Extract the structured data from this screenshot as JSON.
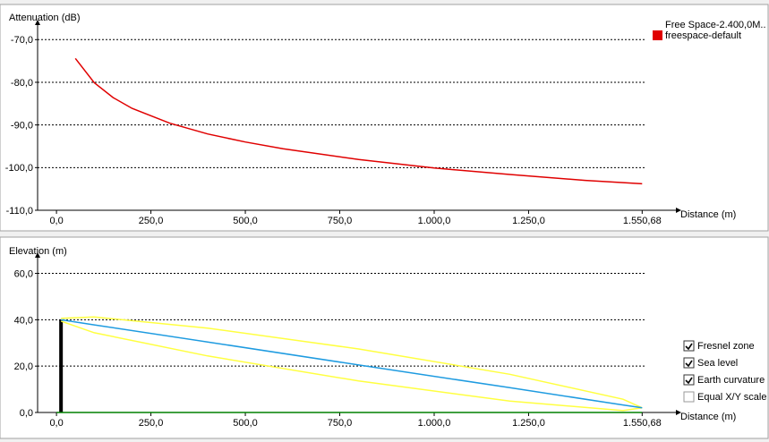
{
  "chart_data": [
    {
      "type": "line",
      "y_label": "Attenuation (dB)",
      "x_label": "Distance (m)",
      "legend_title": "Free Space-2.400,0M..",
      "xlim": [
        -50,
        1640
      ],
      "ylim": [
        -110,
        -67
      ],
      "xticks": [
        {
          "value": 0,
          "label": "0,0"
        },
        {
          "value": 250,
          "label": "250,0"
        },
        {
          "value": 500,
          "label": "500,0"
        },
        {
          "value": 750,
          "label": "750,0"
        },
        {
          "value": 1000,
          "label": "1.000,0"
        },
        {
          "value": 1250,
          "label": "1.250,0"
        },
        {
          "value": 1550.68,
          "label": "1.550,68"
        }
      ],
      "yticks": [
        {
          "value": -110,
          "label": "-110,0"
        },
        {
          "value": -100,
          "label": "-100,0"
        },
        {
          "value": -90,
          "label": "-90,0"
        },
        {
          "value": -80,
          "label": "-80,0"
        },
        {
          "value": -70,
          "label": "-70,0"
        }
      ],
      "grid": true,
      "series": [
        {
          "name": "freespace-default",
          "color": "#e00000",
          "x": [
            50,
            100,
            150,
            200,
            300,
            400,
            500,
            600,
            800,
            1000,
            1200,
            1400,
            1550.68
          ],
          "values": [
            -74.4,
            -80.1,
            -83.6,
            -86.1,
            -89.6,
            -92.1,
            -94.0,
            -95.6,
            -98.1,
            -100.1,
            -101.6,
            -103.0,
            -103.8
          ]
        }
      ]
    },
    {
      "type": "line",
      "y_label": "Elevation (m)",
      "x_label": "Distance (m)",
      "xlim": [
        -50,
        1640
      ],
      "ylim": [
        0,
        66
      ],
      "xticks": [
        {
          "value": 0,
          "label": "0,0"
        },
        {
          "value": 250,
          "label": "250,0"
        },
        {
          "value": 500,
          "label": "500,0"
        },
        {
          "value": 750,
          "label": "750,0"
        },
        {
          "value": 1000,
          "label": "1.000,0"
        },
        {
          "value": 1250,
          "label": "1.250,0"
        },
        {
          "value": 1550.68,
          "label": "1.550,68"
        }
      ],
      "yticks": [
        {
          "value": 0,
          "label": "0,0"
        },
        {
          "value": 20,
          "label": "20,0"
        },
        {
          "value": 40,
          "label": "40,0"
        },
        {
          "value": 60,
          "label": "60,0"
        }
      ],
      "grid": true,
      "tower": {
        "x": 12,
        "height": 40,
        "color": "#000000"
      },
      "series": [
        {
          "color": "#008000",
          "x": [
            0,
            1550.68
          ],
          "values": [
            0,
            0
          ]
        },
        {
          "color": "#ffff40",
          "x": [
            12,
            100,
            400,
            800,
            1200,
            1500,
            1550.68
          ],
          "values": [
            40.6,
            41.2,
            36.4,
            27.4,
            16.5,
            5.7,
            2
          ]
        },
        {
          "color": "#ffff40",
          "x": [
            12,
            100,
            400,
            800,
            1200,
            1500,
            1550.68
          ],
          "values": [
            39.4,
            34.4,
            24.4,
            13.6,
            4.9,
            0.8,
            2
          ]
        },
        {
          "color": "#1e9be0",
          "x": [
            12,
            100,
            400,
            800,
            1200,
            1500,
            1550.68
          ],
          "values": [
            40,
            37.8,
            30.4,
            20.5,
            10.7,
            3.25,
            2
          ]
        }
      ],
      "options": [
        {
          "label": "Fresnel zone",
          "checked": true
        },
        {
          "label": "Sea level",
          "checked": true
        },
        {
          "label": "Earth curvature",
          "checked": true
        },
        {
          "label": "Equal X/Y scale",
          "checked": false
        }
      ]
    }
  ]
}
